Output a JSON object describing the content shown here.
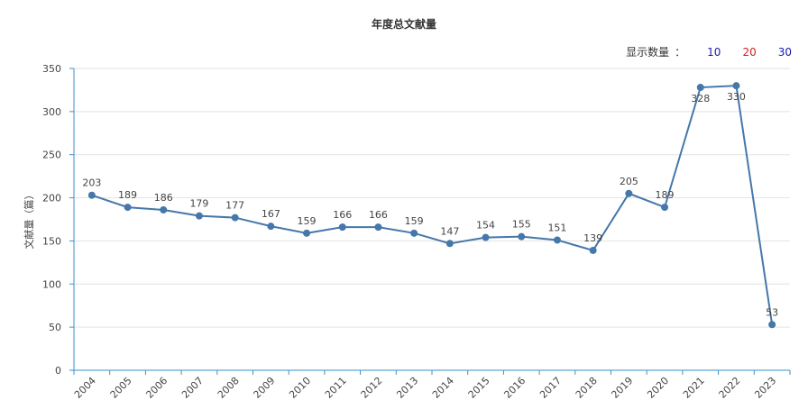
{
  "display_count": {
    "label": "显示数量",
    "separator": "：",
    "options": [
      {
        "label": "10",
        "color": "#1a1aa8"
      },
      {
        "label": "20",
        "color": "#d81e1e"
      },
      {
        "label": "30",
        "color": "#1a1aa8"
      }
    ]
  },
  "colors": {
    "line": "#4577aa",
    "axis": "#3a93c6",
    "grid": "#e3e3e3"
  },
  "chart_data": {
    "type": "line",
    "title": "年度总文献量",
    "xlabel": "",
    "ylabel": "文献量（篇）",
    "ylim": [
      0,
      350
    ],
    "yticks": [
      0,
      50,
      100,
      150,
      200,
      250,
      300,
      350
    ],
    "grid": true,
    "x": [
      "2004",
      "2005",
      "2006",
      "2007",
      "2008",
      "2009",
      "2010",
      "2011",
      "2012",
      "2013",
      "2014",
      "2015",
      "2016",
      "2017",
      "2018",
      "2019",
      "2020",
      "2021",
      "2022",
      "2023"
    ],
    "series": [
      {
        "values": [
          203,
          189,
          186,
          179,
          177,
          167,
          159,
          166,
          166,
          159,
          147,
          154,
          155,
          151,
          139,
          205,
          189,
          328,
          330,
          53
        ]
      }
    ]
  }
}
